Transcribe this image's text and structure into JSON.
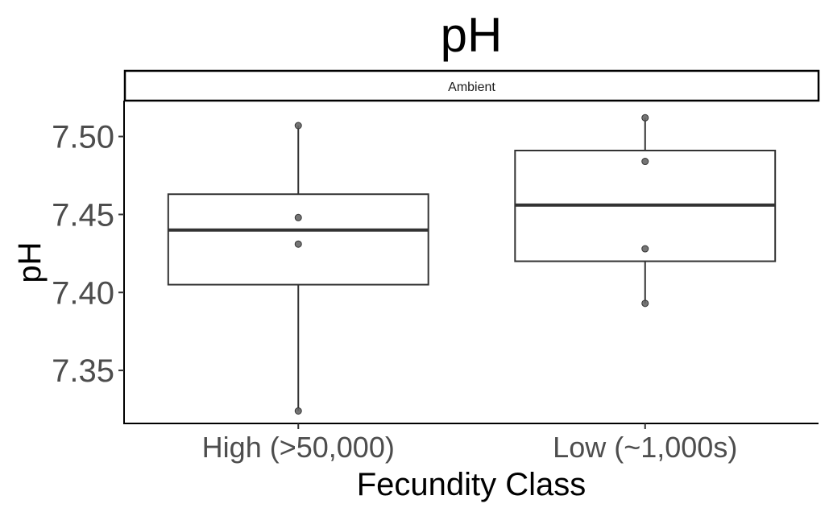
{
  "chart_data": {
    "type": "box",
    "title": "pH",
    "facet_label": "Ambient",
    "xlabel": "Fecundity Class",
    "ylabel": "pH",
    "ylim": [
      7.316,
      7.523
    ],
    "yticks": [
      7.35,
      7.4,
      7.45,
      7.5
    ],
    "ytick_labels": [
      "7.35",
      "7.40",
      "7.45",
      "7.50"
    ],
    "categories": [
      "High (>50,000)",
      "Low (~1,000s)"
    ],
    "boxes": [
      {
        "category": "High (>50,000)",
        "q1": 7.405,
        "median": 7.44,
        "q3": 7.463,
        "whisker_low": 7.324,
        "whisker_high": 7.507,
        "points": [
          7.507,
          7.448,
          7.431,
          7.324
        ]
      },
      {
        "category": "Low (~1,000s)",
        "q1": 7.42,
        "median": 7.456,
        "q3": 7.491,
        "whisker_low": 7.393,
        "whisker_high": 7.512,
        "points": [
          7.512,
          7.484,
          7.428,
          7.393
        ]
      }
    ],
    "grid": false,
    "colors": {
      "box_line": "#333333",
      "point": "#666666",
      "axis": "#000000"
    }
  }
}
